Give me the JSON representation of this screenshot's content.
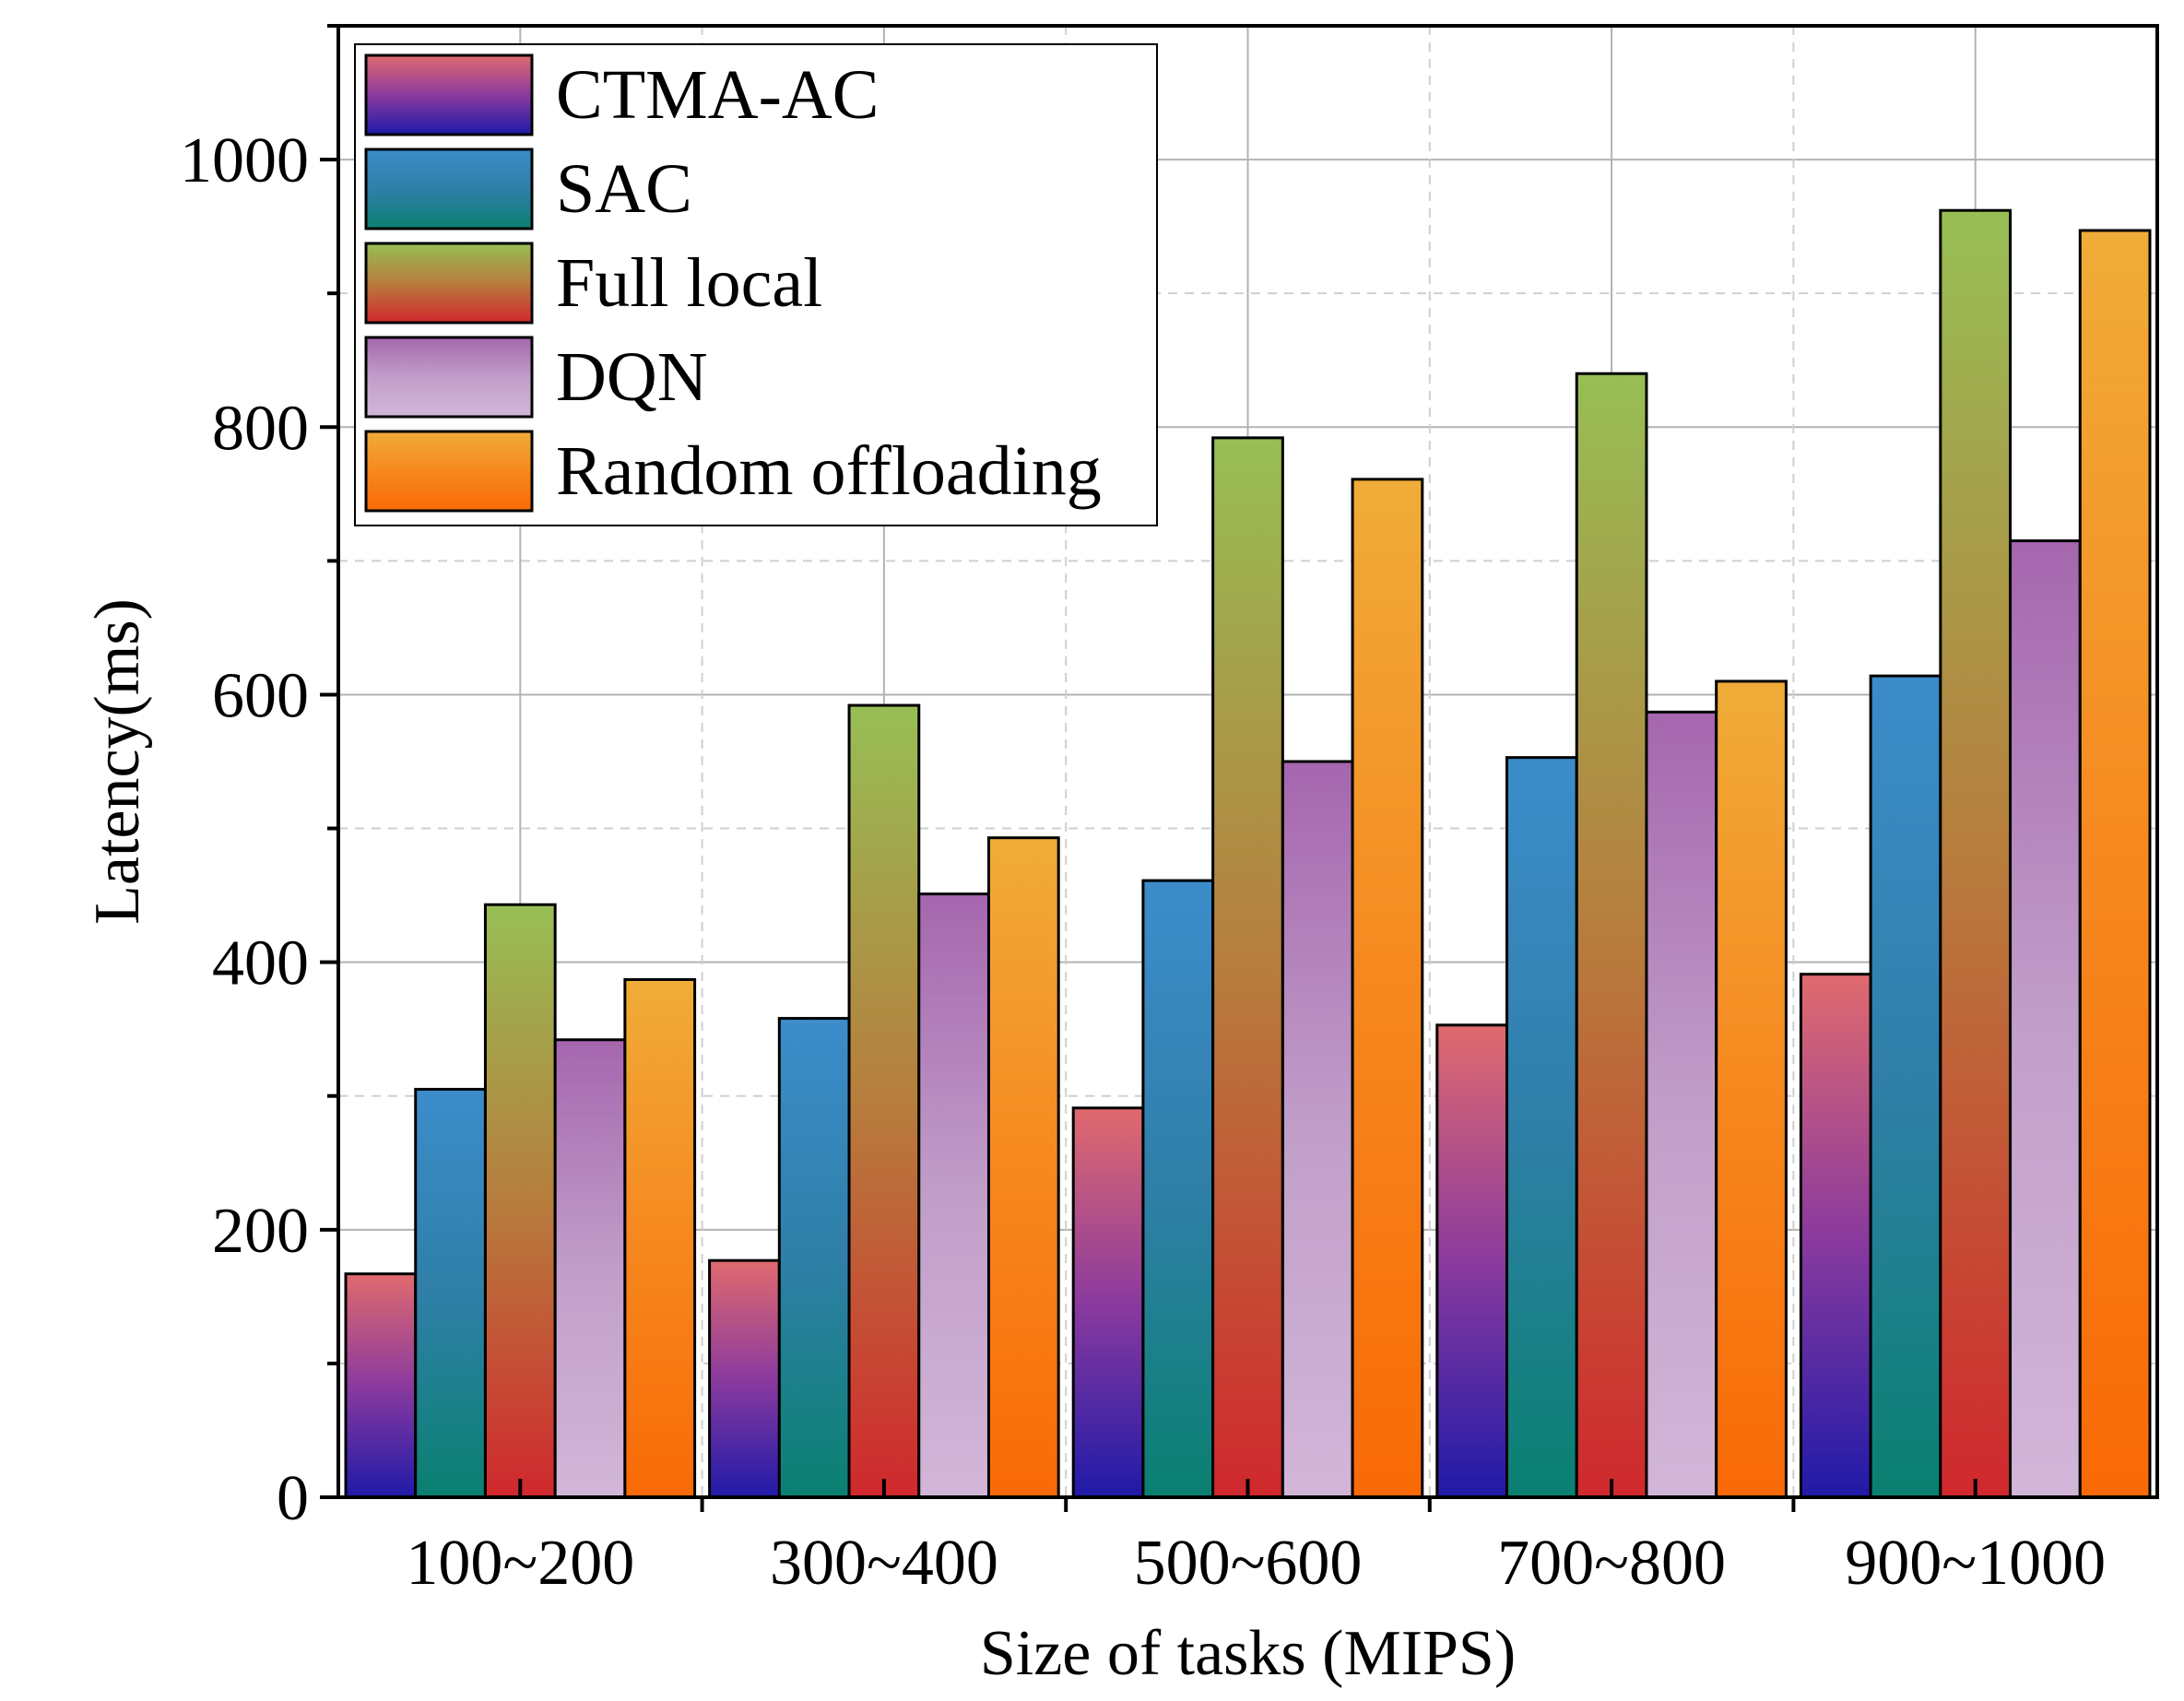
{
  "chart_data": {
    "type": "bar",
    "title": "",
    "xlabel": "Size of tasks (MIPS)",
    "ylabel": "Latency(ms)",
    "ylim": [
      0,
      1100
    ],
    "yticks": [
      0,
      200,
      400,
      600,
      800,
      1000
    ],
    "ytick_labels": [
      "0",
      "200",
      "400",
      "600",
      "800",
      "1000"
    ],
    "categories": [
      "100~200",
      "300~400",
      "500~600",
      "700~800",
      "900~1000"
    ],
    "grid": true,
    "legend_position": "top-left",
    "series": [
      {
        "name": "CTMA-AC",
        "values": [
          167,
          177,
          291,
          353,
          391
        ],
        "gradient": [
          "#e06a6e",
          "#8b3a9e",
          "#1f1aa8"
        ]
      },
      {
        "name": "SAC",
        "values": [
          305,
          358,
          461,
          553,
          614
        ],
        "gradient": [
          "#3c8ccb",
          "#2f7fa8",
          "#0a8070"
        ]
      },
      {
        "name": "Full local",
        "values": [
          443,
          592,
          792,
          840,
          962
        ],
        "gradient": [
          "#97be55",
          "#b77d3d",
          "#d0282e"
        ]
      },
      {
        "name": "DQN",
        "values": [
          342,
          451,
          550,
          587,
          715
        ],
        "gradient": [
          "#a566ae",
          "#c19ec9",
          "#d2b6d8"
        ]
      },
      {
        "name": "Random offloading",
        "values": [
          387,
          493,
          761,
          610,
          947
        ],
        "gradient": [
          "#f0ac38",
          "#f6881f",
          "#f96a06"
        ]
      }
    ]
  }
}
